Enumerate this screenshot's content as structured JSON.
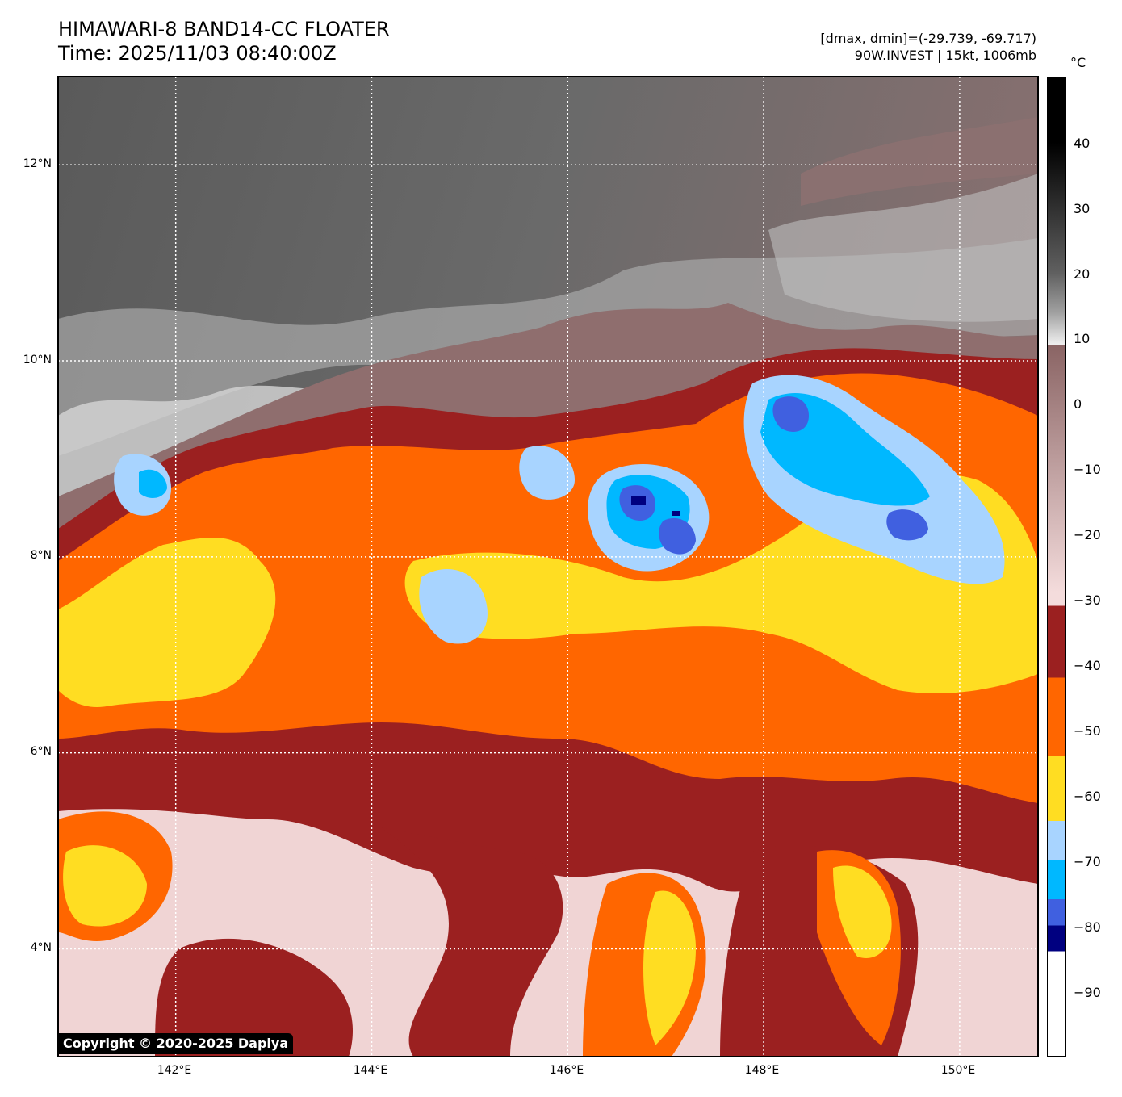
{
  "header": {
    "title_line1": "HIMAWARI-8 BAND14-CC FLOATER",
    "title_line2": "Time: 2025/11/03 08:40:00Z",
    "info_line1": "[dmax, dmin]=(-29.739, -69.717)",
    "info_line2": "90W.INVEST | 15kt, 1006mb"
  },
  "map": {
    "lat_labels": [
      "12°N",
      "10°N",
      "8°N",
      "6°N",
      "4°N"
    ],
    "lon_labels": [
      "142°E",
      "144°E",
      "146°E",
      "148°E",
      "150°E"
    ],
    "lat_range": [
      2.9,
      12.9
    ],
    "lon_range": [
      140.8,
      150.8
    ],
    "copyright": "Copyright © 2020-2025 Dapiya"
  },
  "colorbar": {
    "unit": "°C",
    "ticks": [
      "40",
      "30",
      "20",
      "10",
      "0",
      "−10",
      "−20",
      "−30",
      "−40",
      "−50",
      "−60",
      "−70",
      "−80",
      "−90"
    ],
    "range": [
      -100,
      50
    ],
    "colors": {
      "gray_scale": [
        "#000000",
        "#303030",
        "#606060",
        "#a0a0a0",
        "#f0f0f0"
      ],
      "warm_brown": "#8a6464",
      "pink": "#f4dcdc",
      "dark_red": "#9b2020",
      "orange": "#ff6600",
      "yellow": "#ffdd22",
      "light_blue": "#a8d4ff",
      "cyan": "#00b8ff",
      "blue": "#4060e0",
      "navy": "#000080",
      "white": "#ffffff"
    }
  }
}
